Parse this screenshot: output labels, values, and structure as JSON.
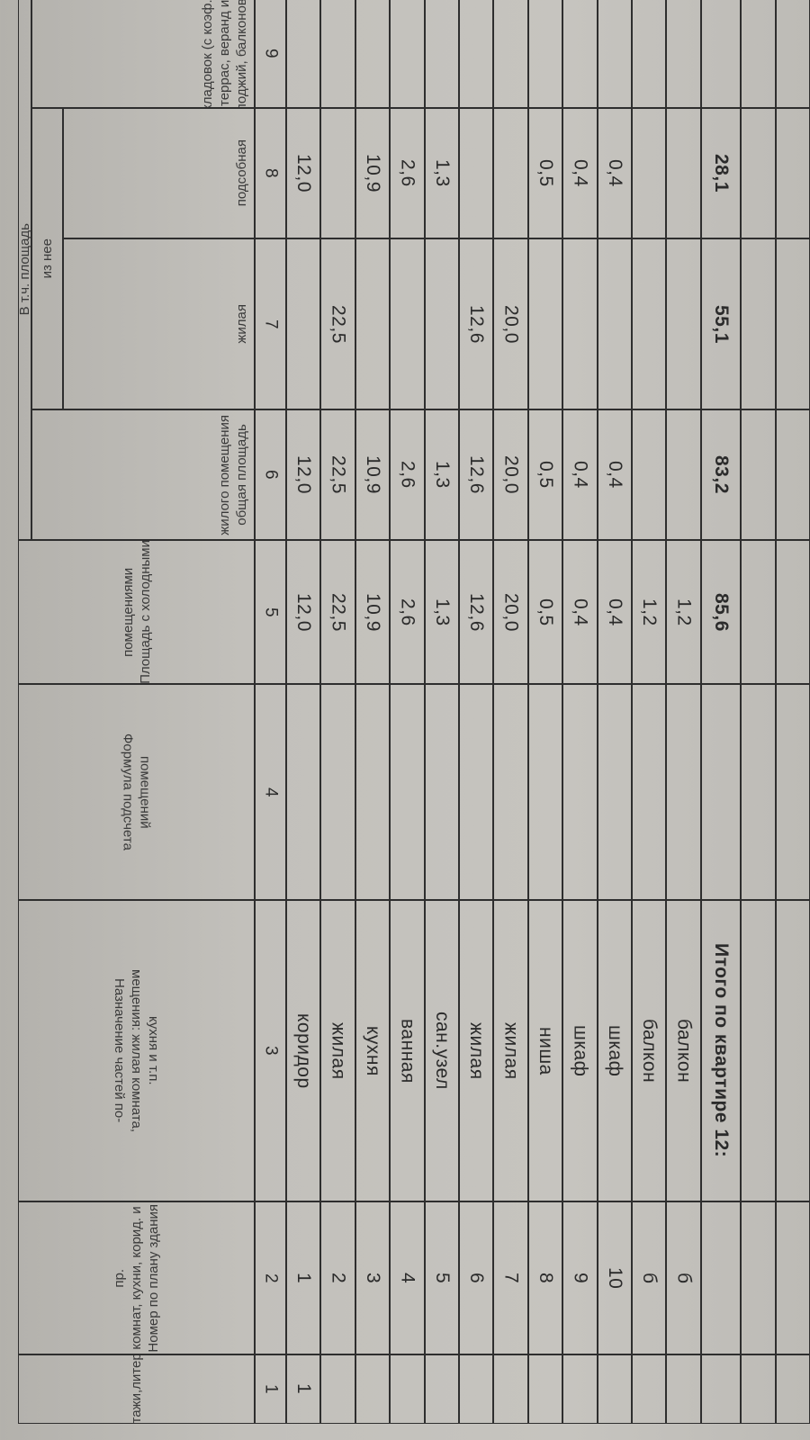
{
  "header": {
    "group_area": "В т.ч. площадь",
    "group_of_it": "из нее",
    "columns": [
      {
        "num": "1",
        "lines": [
          "Этажи,литера"
        ]
      },
      {
        "num": "2",
        "lines": [
          "Номер по плану здания",
          "комнат, кухни, корид. и",
          "пр."
        ]
      },
      {
        "num": "3",
        "lines": [
          "Назначение частей по-",
          "мещения: жилая комната,",
          "кухня  и т.п."
        ]
      },
      {
        "num": "4",
        "lines": [
          "Формула  подсчета",
          "помещений"
        ]
      },
      {
        "num": "5",
        "lines": [
          "Площадь с холодными",
          "помещениями"
        ]
      },
      {
        "num": "6",
        "lines": [
          "общая площадь",
          "жилого помещения"
        ]
      },
      {
        "num": "7",
        "lines": [
          "жилая"
        ]
      },
      {
        "num": "8",
        "lines": [
          "подсобная"
        ]
      },
      {
        "num": "9",
        "lines": [
          "лоджий, балконов,",
          "террас, веранд и",
          "кладовок (с коэф.)"
        ]
      }
    ]
  },
  "rows": [
    {
      "floor": "1",
      "no": "1",
      "purpose": "коридор",
      "formula": "",
      "cold_area": "12,0",
      "total_area": "12,0",
      "living": "",
      "auxiliary": "12,0",
      "loggia": ""
    },
    {
      "floor": "",
      "no": "2",
      "purpose": "жилая",
      "formula": "",
      "cold_area": "22,5",
      "total_area": "22,5",
      "living": "22,5",
      "auxiliary": "",
      "loggia": ""
    },
    {
      "floor": "",
      "no": "3",
      "purpose": "кухня",
      "formula": "",
      "cold_area": "10,9",
      "total_area": "10,9",
      "living": "",
      "auxiliary": "10,9",
      "loggia": ""
    },
    {
      "floor": "",
      "no": "4",
      "purpose": "ванная",
      "formula": "",
      "cold_area": "2,6",
      "total_area": "2,6",
      "living": "",
      "auxiliary": "2,6",
      "loggia": ""
    },
    {
      "floor": "",
      "no": "5",
      "purpose": "сан.узел",
      "formula": "",
      "cold_area": "1,3",
      "total_area": "1,3",
      "living": "",
      "auxiliary": "1,3",
      "loggia": ""
    },
    {
      "floor": "",
      "no": "6",
      "purpose": "жилая",
      "formula": "",
      "cold_area": "12,6",
      "total_area": "12,6",
      "living": "12,6",
      "auxiliary": "",
      "loggia": ""
    },
    {
      "floor": "",
      "no": "7",
      "purpose": "жилая",
      "formula": "",
      "cold_area": "20,0",
      "total_area": "20,0",
      "living": "20,0",
      "auxiliary": "",
      "loggia": ""
    },
    {
      "floor": "",
      "no": "8",
      "purpose": "ниша",
      "formula": "",
      "cold_area": "0,5",
      "total_area": "0,5",
      "living": "",
      "auxiliary": "0,5",
      "loggia": ""
    },
    {
      "floor": "",
      "no": "9",
      "purpose": "шкаф",
      "formula": "",
      "cold_area": "0,4",
      "total_area": "0,4",
      "living": "",
      "auxiliary": "0,4",
      "loggia": ""
    },
    {
      "floor": "",
      "no": "10",
      "purpose": "шкаф",
      "formula": "",
      "cold_area": "0,4",
      "total_area": "0,4",
      "living": "",
      "auxiliary": "0,4",
      "loggia": ""
    },
    {
      "floor": "",
      "no": "б",
      "purpose": "балкон",
      "formula": "",
      "cold_area": "1,2",
      "total_area": "",
      "living": "",
      "auxiliary": "",
      "loggia": ""
    },
    {
      "floor": "",
      "no": "б",
      "purpose": "балкон",
      "formula": "",
      "cold_area": "1,2",
      "total_area": "",
      "living": "",
      "auxiliary": "",
      "loggia": ""
    }
  ],
  "total": {
    "label": "Итого по квартире 12:",
    "cold_area": "85,6",
    "total_area": "83,2",
    "living": "55,1",
    "auxiliary": "28,1",
    "loggia": ""
  },
  "empty_rows": 3
}
